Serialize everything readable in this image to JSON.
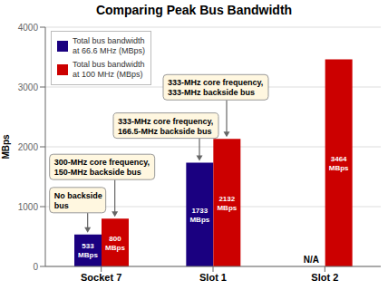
{
  "chart_data": {
    "type": "bar",
    "title": "Comparing Peak Bus Bandwidth",
    "y_label": "MBps",
    "categories": [
      "Socket 7",
      "Slot 1",
      "Slot 2"
    ],
    "series": [
      {
        "name": "Total bus bandwidth\nat 66.6 MHz (MBps)",
        "color": "#1a0080",
        "values": [
          533,
          1733,
          null
        ],
        "value_labels": [
          "533\nMBps",
          "1733\nMBps",
          null
        ]
      },
      {
        "name": "Total bus bandwidth\nat 100 MHz (MBps)",
        "color": "#cc0000",
        "values": [
          800,
          2132,
          3464
        ],
        "value_labels": [
          "800\nMBps",
          "2132\nMBps",
          "3464\nMBps"
        ]
      }
    ],
    "ylim": [
      0,
      4000
    ],
    "yticks": [
      0,
      1000,
      2000,
      3000,
      4000
    ],
    "grid": true,
    "data_labels": true,
    "legend": "upper left",
    "annotations": [
      {
        "text": "No backside\nbus",
        "category": "Socket 7",
        "series": "Total bus bandwidth\nat 66.6 MHz (MBps)"
      },
      {
        "text": "300-MHz core frequency,\n150-MHz backside bus",
        "category": "Socket 7",
        "series": "Total bus bandwidth\nat 100 MHz (MBps)"
      },
      {
        "text": "333-MHz core frequency,\n166.5-MHz backside bus",
        "category": "Slot 1",
        "series": "Total bus bandwidth\nat 66.6 MHz (MBps)"
      },
      {
        "text": "333-MHz core frequency,\n333-MHz backside bus",
        "category": "Slot 1",
        "series": "Total bus bandwidth\nat 100 MHz (MBps)"
      },
      {
        "text": "N/A",
        "category": "Slot 2",
        "series": "Total bus bandwidth\nat 66.6 MHz (MBps)"
      }
    ]
  }
}
